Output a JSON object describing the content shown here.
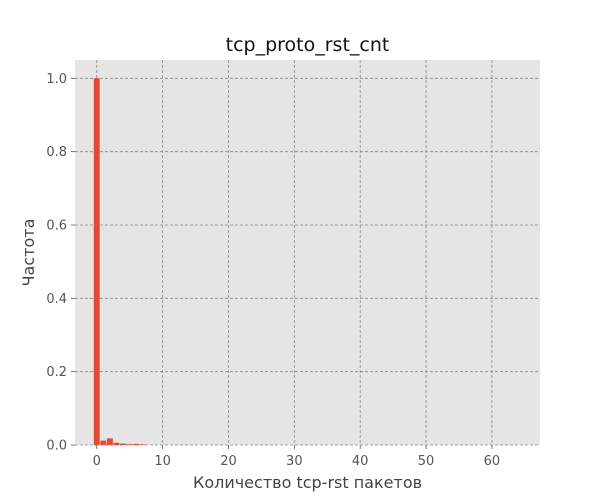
{
  "chart_data": {
    "type": "bar",
    "title": "tcp_proto_rst_cnt",
    "xlabel": "Количество tcp-rst пакетов",
    "ylabel": "Частота",
    "x": [
      0,
      1,
      2,
      3,
      4,
      5,
      6,
      7
    ],
    "values": [
      1.0,
      0.012,
      0.018,
      0.006,
      0.004,
      0.002,
      0.003,
      0.001
    ],
    "xlim": [
      -3.3,
      67.3
    ],
    "ylim": [
      0,
      1.05
    ],
    "xticks": [
      0,
      10,
      20,
      30,
      40,
      50,
      60
    ],
    "xtick_labels": [
      "0",
      "10",
      "20",
      "30",
      "40",
      "50",
      "60"
    ],
    "yticks": [
      0.0,
      0.2,
      0.4,
      0.6,
      0.8,
      1.0
    ],
    "ytick_labels": [
      "0.0",
      "0.2",
      "0.4",
      "0.6",
      "0.8",
      "1.0"
    ],
    "grid": true,
    "bar_color": "#E24A33",
    "plot_background": "#E5E5E5",
    "grid_color": "#888888"
  }
}
